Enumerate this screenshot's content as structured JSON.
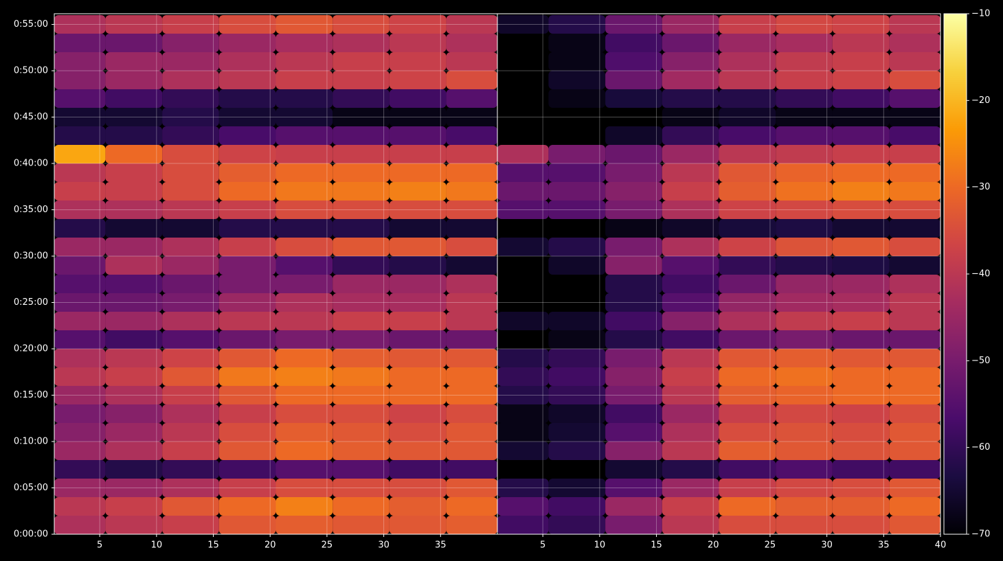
{
  "chart_data": {
    "type": "heatmap",
    "y": [
      60,
      180,
      300,
      420,
      540,
      660,
      780,
      900,
      1020,
      1140,
      1260,
      1380,
      1500,
      1620,
      1740,
      1860,
      1980,
      2100,
      2220,
      2340,
      2460,
      2580,
      2700,
      2820,
      2940,
      3060,
      3180,
      3300
    ],
    "ylim": [
      0,
      3369
    ],
    "yticks": [
      {
        "value": 0,
        "label": "0:00:00"
      },
      {
        "value": 300,
        "label": "0:05:00"
      },
      {
        "value": 600,
        "label": "0:10:00"
      },
      {
        "value": 900,
        "label": "0:15:00"
      },
      {
        "value": 1200,
        "label": "0:20:00"
      },
      {
        "value": 1500,
        "label": "0:25:00"
      },
      {
        "value": 1800,
        "label": "0:30:00"
      },
      {
        "value": 2100,
        "label": "0:35:00"
      },
      {
        "value": 2400,
        "label": "0:40:00"
      },
      {
        "value": 2700,
        "label": "0:45:00"
      },
      {
        "value": 3000,
        "label": "0:50:00"
      },
      {
        "value": 3300,
        "label": "0:55:00"
      }
    ],
    "grid": true,
    "colormap": [
      "#000004",
      "#1b0c41",
      "#4a0c6b",
      "#781c6d",
      "#a52c60",
      "#cf4446",
      "#ed6925",
      "#fb9b06",
      "#f7d13d",
      "#fcffa4"
    ],
    "clim": [
      -70,
      -10
    ],
    "cticks": [
      {
        "value": -70,
        "label": "−70"
      },
      {
        "value": -60,
        "label": "−60"
      },
      {
        "value": -50,
        "label": "−50"
      },
      {
        "value": -40,
        "label": "−40"
      },
      {
        "value": -30,
        "label": "−30"
      },
      {
        "value": -20,
        "label": "−20"
      },
      {
        "value": -10,
        "label": "−10"
      }
    ],
    "panels": [
      {
        "x": [
          3,
          8,
          13,
          18,
          23,
          28,
          33,
          38
        ],
        "xlim": [
          1,
          40
        ],
        "xticks": [
          5,
          10,
          15,
          20,
          25,
          30,
          35
        ],
        "values": [
          [
            -42,
            -40,
            -38,
            -33,
            -32,
            -33,
            -33,
            -32
          ],
          [
            -40,
            -38,
            -33,
            -30,
            -27,
            -30,
            -32,
            -30
          ],
          [
            -45,
            -45,
            -42,
            -38,
            -35,
            -35,
            -35,
            -33
          ],
          [
            -60,
            -62,
            -60,
            -58,
            -55,
            -55,
            -58,
            -58
          ],
          [
            -45,
            -42,
            -38,
            -33,
            -30,
            -32,
            -33,
            -33
          ],
          [
            -48,
            -45,
            -40,
            -35,
            -32,
            -33,
            -35,
            -33
          ],
          [
            -50,
            -48,
            -42,
            -38,
            -35,
            -35,
            -37,
            -35
          ],
          [
            -45,
            -42,
            -38,
            -33,
            -30,
            -30,
            -30,
            -30
          ],
          [
            -40,
            -38,
            -33,
            -28,
            -27,
            -28,
            -30,
            -30
          ],
          [
            -42,
            -40,
            -37,
            -33,
            -30,
            -32,
            -33,
            -33
          ],
          [
            -55,
            -58,
            -55,
            -52,
            -50,
            -50,
            -52,
            -52
          ],
          [
            -45,
            -45,
            -42,
            -40,
            -40,
            -38,
            -38,
            -40
          ],
          [
            -52,
            -52,
            -50,
            -45,
            -42,
            -43,
            -43,
            -40
          ],
          [
            -55,
            -55,
            -52,
            -50,
            -50,
            -45,
            -45,
            -42
          ],
          [
            -52,
            -42,
            -45,
            -50,
            -55,
            -60,
            -62,
            -65
          ],
          [
            -45,
            -45,
            -42,
            -38,
            -35,
            -33,
            -33,
            -35
          ],
          [
            -62,
            -65,
            -65,
            -62,
            -62,
            -62,
            -65,
            -65
          ],
          [
            -42,
            -42,
            -40,
            -38,
            -35,
            -35,
            -35,
            -35
          ],
          [
            -38,
            -38,
            -35,
            -30,
            -28,
            -28,
            -27,
            -28
          ],
          [
            -40,
            -38,
            -35,
            -32,
            -30,
            -30,
            -30,
            -30
          ],
          [
            -22,
            -30,
            -35,
            -37,
            -38,
            -38,
            -38,
            -38
          ],
          [
            -62,
            -62,
            -60,
            -57,
            -55,
            -55,
            -55,
            -57
          ],
          [
            -65,
            -65,
            -62,
            -65,
            -65,
            -68,
            -68,
            -68
          ],
          [
            -55,
            -58,
            -60,
            -62,
            -62,
            -60,
            -58,
            -55
          ],
          [
            -48,
            -45,
            -42,
            -40,
            -38,
            -38,
            -37,
            -35
          ],
          [
            -48,
            -45,
            -45,
            -42,
            -40,
            -38,
            -38,
            -40
          ],
          [
            -52,
            -52,
            -48,
            -45,
            -43,
            -42,
            -40,
            -42
          ],
          [
            -42,
            -40,
            -38,
            -35,
            -33,
            -35,
            -37,
            -40
          ]
        ]
      },
      {
        "x": [
          3,
          8,
          13,
          18,
          23,
          28,
          33,
          38
        ],
        "xlim": [
          1,
          40
        ],
        "xticks": [
          5,
          10,
          15,
          20,
          25,
          30,
          35,
          40
        ],
        "values": [
          [
            -58,
            -60,
            -50,
            -40,
            -35,
            -35,
            -35,
            -33
          ],
          [
            -55,
            -58,
            -45,
            -38,
            -30,
            -32,
            -32,
            -30
          ],
          [
            -62,
            -65,
            -55,
            -45,
            -38,
            -36,
            -35,
            -33
          ],
          [
            null,
            null,
            -65,
            -62,
            -58,
            -56,
            -58,
            -58
          ],
          [
            -65,
            -62,
            -48,
            -40,
            -32,
            -33,
            -34,
            -33
          ],
          [
            -68,
            -65,
            -55,
            -42,
            -35,
            -34,
            -35,
            -33
          ],
          [
            -68,
            -66,
            -58,
            -45,
            -38,
            -36,
            -37,
            -35
          ],
          [
            -62,
            -60,
            -50,
            -40,
            -32,
            -31,
            -30,
            -30
          ],
          [
            -60,
            -58,
            -48,
            -38,
            -30,
            -29,
            -30,
            -30
          ],
          [
            -62,
            -60,
            -50,
            -40,
            -33,
            -32,
            -33,
            -33
          ],
          [
            null,
            -68,
            -62,
            -58,
            -52,
            -50,
            -52,
            -52
          ],
          [
            -66,
            -66,
            -58,
            -48,
            -42,
            -39,
            -38,
            -40
          ],
          [
            null,
            null,
            -62,
            -55,
            -46,
            -44,
            -43,
            -40
          ],
          [
            null,
            null,
            -62,
            -58,
            -52,
            -46,
            -45,
            -42
          ],
          [
            null,
            -66,
            -48,
            -55,
            -60,
            -62,
            -63,
            -65
          ],
          [
            -65,
            -62,
            -50,
            -42,
            -37,
            -34,
            -33,
            -35
          ],
          [
            null,
            null,
            -68,
            -66,
            -64,
            -63,
            -65,
            -65
          ],
          [
            -55,
            -55,
            -50,
            -42,
            -37,
            -36,
            -35,
            -35
          ],
          [
            -52,
            -52,
            -48,
            -38,
            -32,
            -29,
            -27,
            -28
          ],
          [
            -55,
            -55,
            -50,
            -40,
            -33,
            -31,
            -30,
            -30
          ],
          [
            -42,
            -50,
            -52,
            -45,
            -40,
            -39,
            -38,
            -38
          ],
          [
            null,
            null,
            -66,
            -60,
            -57,
            -55,
            -55,
            -57
          ],
          [
            null,
            null,
            null,
            -68,
            -66,
            -68,
            -68,
            -68
          ],
          [
            null,
            -68,
            -64,
            -62,
            -62,
            -60,
            -58,
            -55
          ],
          [
            null,
            -66,
            -52,
            -44,
            -40,
            -38,
            -37,
            -35
          ],
          [
            null,
            -68,
            -56,
            -48,
            -42,
            -39,
            -38,
            -40
          ],
          [
            null,
            -68,
            -58,
            -52,
            -45,
            -43,
            -40,
            -42
          ],
          [
            -66,
            -62,
            -52,
            -45,
            -38,
            -36,
            -37,
            -40
          ]
        ]
      }
    ]
  }
}
